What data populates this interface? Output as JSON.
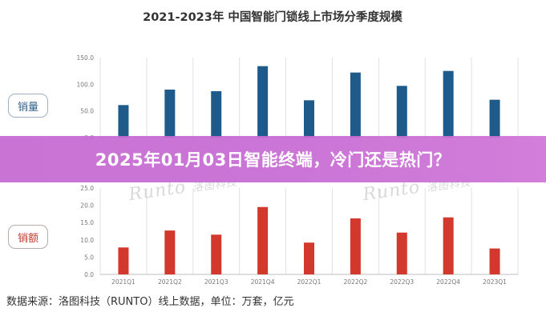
{
  "chart_data": [
    {
      "type": "bar",
      "title": "2021-2023年 中国智能门锁线上市场分季度规模",
      "panel_label": "销量",
      "categories": [
        "2021Q1",
        "2021Q2",
        "2021Q3",
        "2021Q4",
        "2022Q1",
        "2022Q2",
        "2022Q3",
        "2022Q4",
        "2023Q1"
      ],
      "values": [
        61,
        90,
        87,
        134,
        70,
        122,
        97,
        125,
        71
      ],
      "yticks": [
        "150.0",
        "100.0",
        "50.0",
        "0.0"
      ],
      "ylim": [
        0,
        150
      ],
      "color": "#1f5b8a"
    },
    {
      "type": "bar",
      "panel_label": "销额",
      "categories": [
        "2021Q1",
        "2021Q2",
        "2021Q3",
        "2021Q4",
        "2022Q1",
        "2022Q2",
        "2022Q3",
        "2022Q4",
        "2023Q1"
      ],
      "values": [
        7.8,
        12.7,
        11.5,
        19.5,
        9.2,
        16.2,
        12.1,
        16.5,
        7.5
      ],
      "yticks": [
        "25.0",
        "20.0",
        "15.0",
        "10.0",
        "5.0",
        "0.0"
      ],
      "ylim": [
        0,
        25
      ],
      "color": "#d2382c"
    }
  ],
  "watermark": {
    "brand": "Runto",
    "cn": "洛图科技"
  },
  "banner": {
    "headline": "2025年01月03日智能终端，冷门还是热门？"
  },
  "footer": {
    "source": "数据来源：洛图科技（RUNTO）线上数据，单位：万套，亿元"
  }
}
